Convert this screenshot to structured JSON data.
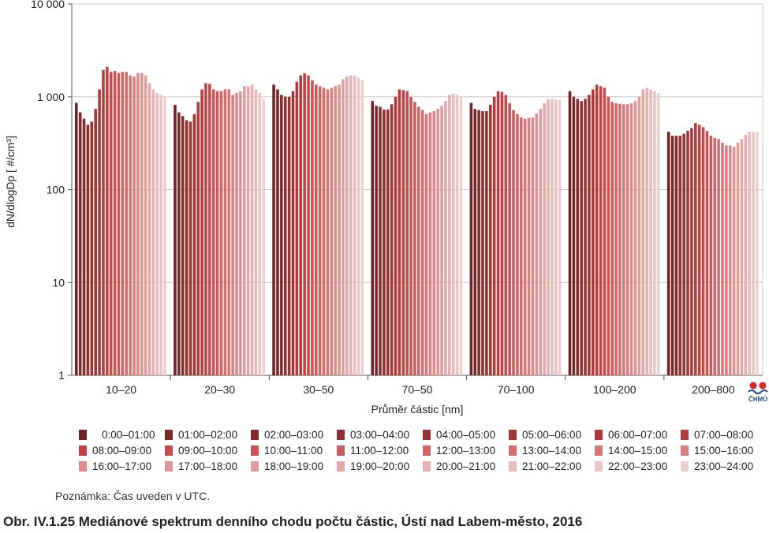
{
  "chart_data": {
    "type": "bar",
    "ylabel": "dN/dlogDp [ #/cm³]",
    "xlabel": "Průměr částic [nm]",
    "y_scale": "log",
    "ylim": [
      1,
      10000
    ],
    "y_ticks": [
      {
        "value": 1,
        "label": "1"
      },
      {
        "value": 10,
        "label": "10"
      },
      {
        "value": 100,
        "label": "100"
      },
      {
        "value": 1000,
        "label": "1 000"
      },
      {
        "value": 10000,
        "label": "10 000"
      }
    ],
    "categories": [
      "10–20",
      "20–30",
      "30–50",
      "70–50",
      "70–100",
      "100–200",
      "200–800"
    ],
    "series_names": [
      "0:00–01:00",
      "01:00–02:00",
      "02:00–03:00",
      "03:00–04:00",
      "04:00–05:00",
      "05:00–06:00",
      "06:00–07:00",
      "07:00–08:00",
      "08:00–09:00",
      "09:00–10:00",
      "10:00–11:00",
      "11:00–12:00",
      "12:00–13:00",
      "13:00–14:00",
      "14:00–15:00",
      "15:00–16:00",
      "16:00–17:00",
      "17:00–18:00",
      "18:00–19:00",
      "19:00–20:00",
      "20:00–21:00",
      "21:00–22:00",
      "22:00–23:00",
      "23:00–24:00"
    ],
    "series_colors": [
      "#6e2424",
      "#7a2828",
      "#842c2c",
      "#8e3030",
      "#983333",
      "#a23636",
      "#ac3a3a",
      "#b63d3d",
      "#bf4343",
      "#c64b4b",
      "#ca5353",
      "#cd5b5b",
      "#d06464",
      "#d36d6d",
      "#d57676",
      "#d88080",
      "#da8a8a",
      "#dd9494",
      "#df9e9e",
      "#e2a8a8",
      "#e5b2b2",
      "#e8bcbc",
      "#eac5c5",
      "#edcfcf"
    ],
    "values": [
      [
        860,
        680,
        580,
        500,
        540,
        740,
        1200,
        1950,
        2100,
        1850,
        1900,
        1800,
        1850,
        1850,
        1700,
        1650,
        1800,
        1800,
        1700,
        1400,
        1200,
        1100,
        1050,
        1000
      ],
      [
        820,
        680,
        620,
        560,
        540,
        650,
        880,
        1200,
        1400,
        1380,
        1200,
        1150,
        1150,
        1200,
        1200,
        1050,
        1100,
        1150,
        1300,
        1300,
        1350,
        1200,
        1100,
        950
      ],
      [
        1350,
        1200,
        1050,
        1000,
        1000,
        1150,
        1450,
        1700,
        1800,
        1700,
        1500,
        1350,
        1300,
        1250,
        1200,
        1250,
        1300,
        1350,
        1550,
        1650,
        1700,
        1700,
        1600,
        1500
      ],
      [
        900,
        800,
        780,
        730,
        730,
        830,
        1000,
        1200,
        1180,
        1150,
        1000,
        880,
        780,
        720,
        650,
        680,
        700,
        740,
        800,
        900,
        1050,
        1080,
        1050,
        1000
      ],
      [
        860,
        740,
        720,
        700,
        700,
        820,
        1000,
        1150,
        1130,
        1050,
        850,
        720,
        650,
        600,
        580,
        590,
        600,
        660,
        740,
        850,
        940,
        950,
        930,
        920
      ],
      [
        1150,
        1000,
        950,
        900,
        950,
        1050,
        1200,
        1350,
        1300,
        1250,
        1000,
        880,
        850,
        840,
        830,
        830,
        850,
        900,
        1000,
        1200,
        1250,
        1200,
        1150,
        1100
      ],
      [
        420,
        380,
        380,
        380,
        400,
        430,
        460,
        520,
        500,
        470,
        430,
        380,
        360,
        350,
        320,
        300,
        300,
        290,
        320,
        350,
        390,
        420,
        420,
        420
      ]
    ]
  },
  "note": "Poznámka: Čas uveden v UTC.",
  "caption": "Obr. IV.1.25  Mediánové spektrum denního chodu počtu částic, Ústí nad Labem-město, 2016",
  "logo": {
    "text": "ČHMÚ",
    "colors": [
      "#d9262b",
      "#1b4a8a"
    ]
  }
}
